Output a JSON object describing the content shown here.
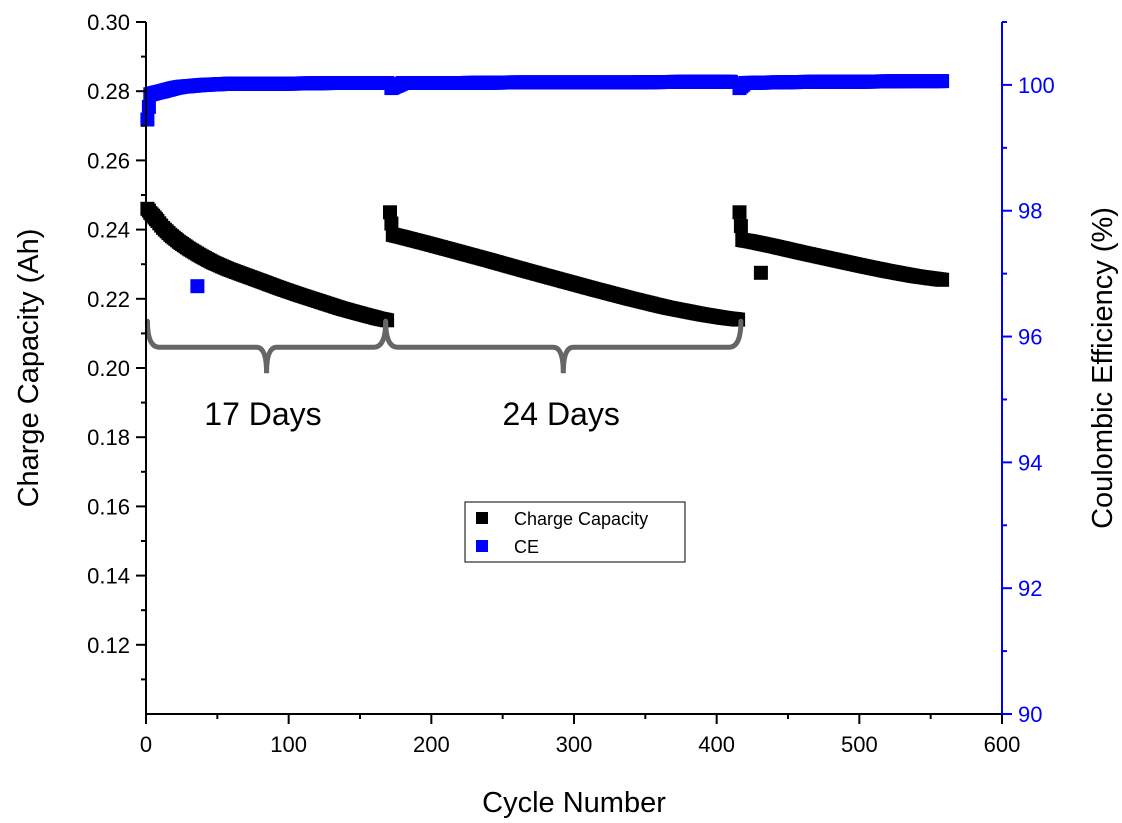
{
  "chart_data": {
    "type": "scatter",
    "xlabel": "Cycle Number",
    "ylabel_left": "Charge Capacity (Ah)",
    "ylabel_right": "Coulombic Efficiency (%)",
    "xlim": [
      0,
      600
    ],
    "ylim_left": [
      0.1,
      0.3
    ],
    "ylim_right": [
      90,
      101
    ],
    "x_ticks": [
      "0",
      "100",
      "200",
      "300",
      "400",
      "500",
      "600"
    ],
    "y_left_ticks": [
      "0.12",
      "0.14",
      "0.16",
      "0.18",
      "0.20",
      "0.22",
      "0.24",
      "0.26",
      "0.28",
      "0.30"
    ],
    "y_right_ticks": [
      "90",
      "92",
      "94",
      "96",
      "98",
      "100"
    ],
    "grid": false,
    "legend_placement": "center",
    "colors": {
      "charge_capacity": "#000000",
      "ce": "#0000ff",
      "bracket": "#666666"
    },
    "annotations": [
      {
        "text": "17 Days",
        "x": 82,
        "y_left": 0.1835
      },
      {
        "text": "24 Days",
        "x": 291,
        "y_left": 0.1835
      }
    ],
    "brackets": [
      {
        "x_start": 1,
        "x_end": 168,
        "y_left": 0.206
      },
      {
        "x_start": 168,
        "x_end": 417,
        "y_left": 0.206
      }
    ],
    "series": [
      {
        "name": "Charge Capacity",
        "axis": "left",
        "segments": [
          {
            "x": [
              1,
              2,
              3,
              5,
              8,
              12,
              17,
              23,
              30,
              38,
              47,
              57,
              68,
              80,
              93,
              107,
              122,
              137,
              152,
              163,
              169
            ],
            "y": [
              0.246,
              0.2455,
              0.2448,
              0.244,
              0.2425,
              0.2405,
              0.2385,
              0.2365,
              0.2345,
              0.2325,
              0.2305,
              0.2287,
              0.227,
              0.2252,
              0.2232,
              0.2212,
              0.2192,
              0.2172,
              0.2155,
              0.2143,
              0.2138
            ]
          },
          {
            "x": [
              171,
              173,
              180,
              195,
              215,
              240,
              265,
              290,
              315,
              340,
              365,
              390,
              405,
              415
            ],
            "y": [
              0.245,
              0.2385,
              0.2378,
              0.2362,
              0.234,
              0.2312,
              0.2283,
              0.2255,
              0.2227,
              0.22,
              0.2175,
              0.2155,
              0.2145,
              0.214
            ]
          },
          {
            "x": [
              416,
              418,
              425,
              440,
              460,
              480,
              500,
              520,
              540,
              558
            ],
            "y": [
              0.245,
              0.237,
              0.2365,
              0.2352,
              0.2333,
              0.2315,
              0.2297,
              0.228,
              0.2265,
              0.2255
            ]
          },
          {
            "x": [
              431
            ],
            "y": [
              0.2275
            ]
          }
        ]
      },
      {
        "name": "CE",
        "axis": "right",
        "segments": [
          {
            "x": [
              1,
              3,
              6,
              10,
              15,
              20,
              25,
              30,
              35,
              40,
              50,
              60,
              80,
              100,
              130,
              160,
              169
            ],
            "y": [
              99.45,
              99.85,
              99.87,
              99.89,
              99.92,
              99.95,
              99.97,
              99.98,
              99.99,
              100.0,
              100.01,
              100.02,
              100.02,
              100.02,
              100.03,
              100.03,
              100.03
            ]
          },
          {
            "x": [
              172,
              180,
              220,
              260,
              300,
              340,
              380,
              410
            ],
            "y": [
              99.95,
              100.03,
              100.03,
              100.04,
              100.04,
              100.04,
              100.05,
              100.05
            ]
          },
          {
            "x": [
              416,
              420,
              440,
              470,
              500,
              530,
              558
            ],
            "y": [
              99.95,
              100.03,
              100.04,
              100.05,
              100.05,
              100.06,
              100.06
            ]
          },
          {
            "x": [
              36
            ],
            "y": [
              96.8
            ]
          }
        ]
      }
    ]
  }
}
